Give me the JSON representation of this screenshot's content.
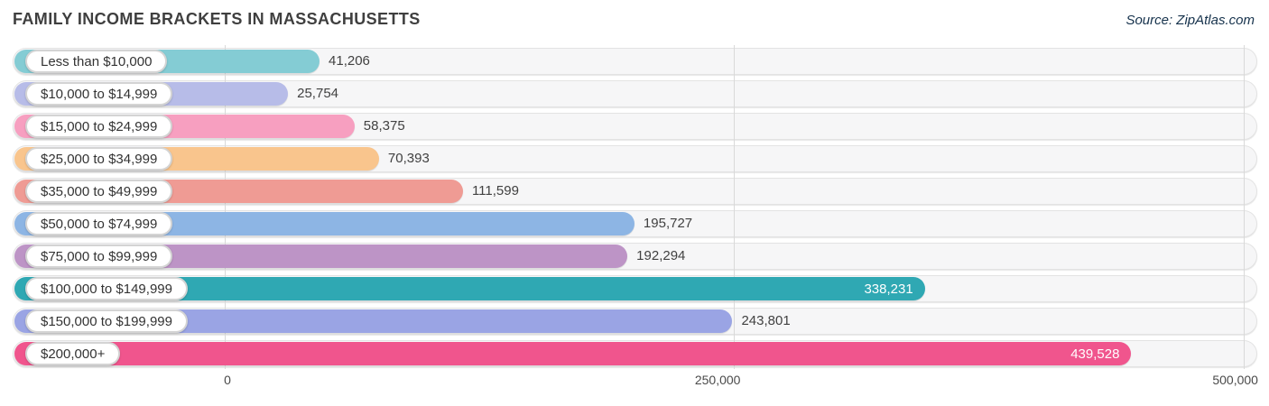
{
  "header": {
    "title": "FAMILY INCOME BRACKETS IN MASSACHUSETTS",
    "source": "Source: ZipAtlas.com"
  },
  "chart_data": {
    "type": "bar",
    "orientation": "horizontal",
    "title": "FAMILY INCOME BRACKETS IN MASSACHUSETTS",
    "xlabel": "",
    "ylabel": "",
    "grid": "vertical-lines",
    "legend": "none",
    "x_axis": {
      "min": 0,
      "max": 500000,
      "tick_labels": [
        "0",
        "250,000",
        "500,000"
      ],
      "tick_values": [
        0,
        250000,
        500000
      ]
    },
    "categories": [
      "Less than $10,000",
      "$10,000 to $14,999",
      "$15,000 to $24,999",
      "$25,000 to $34,999",
      "$35,000 to $49,999",
      "$50,000 to $74,999",
      "$75,000 to $99,999",
      "$100,000 to $149,999",
      "$150,000 to $199,999",
      "$200,000+"
    ],
    "values": [
      41206,
      25754,
      58375,
      70393,
      111599,
      195727,
      192294,
      338231,
      243801,
      439528
    ],
    "rows": [
      {
        "label": "Less than $10,000",
        "value": 41206,
        "value_label": "41,206",
        "color": "#84ccd4",
        "value_inside": false
      },
      {
        "label": "$10,000 to $14,999",
        "value": 25754,
        "value_label": "25,754",
        "color": "#b7bce8",
        "value_inside": false
      },
      {
        "label": "$15,000 to $24,999",
        "value": 58375,
        "value_label": "58,375",
        "color": "#f79fc0",
        "value_inside": false
      },
      {
        "label": "$25,000 to $34,999",
        "value": 70393,
        "value_label": "70,393",
        "color": "#f9c58d",
        "value_inside": false
      },
      {
        "label": "$35,000 to $49,999",
        "value": 111599,
        "value_label": "111,599",
        "color": "#ef9b94",
        "value_inside": false
      },
      {
        "label": "$50,000 to $74,999",
        "value": 195727,
        "value_label": "195,727",
        "color": "#8db5e4",
        "value_inside": false
      },
      {
        "label": "$75,000 to $99,999",
        "value": 192294,
        "value_label": "192,294",
        "color": "#bd94c6",
        "value_inside": false
      },
      {
        "label": "$100,000 to $149,999",
        "value": 338231,
        "value_label": "338,231",
        "color": "#2fa8b3",
        "value_inside": true
      },
      {
        "label": "$150,000 to $199,999",
        "value": 243801,
        "value_label": "243,801",
        "color": "#9aa4e4",
        "value_inside": false
      },
      {
        "label": "$200,000+",
        "value": 439528,
        "value_label": "439,528",
        "color": "#f0558d",
        "value_inside": true
      }
    ],
    "colors": {
      "track_background": "#f6f6f7",
      "track_border": "#e3e3e3",
      "gridline": "#d9d9d9",
      "value_text_outside": "#414141",
      "value_text_inside": "#ffffff",
      "title_text": "#3f3f3f",
      "source_text": "#16324c"
    }
  }
}
